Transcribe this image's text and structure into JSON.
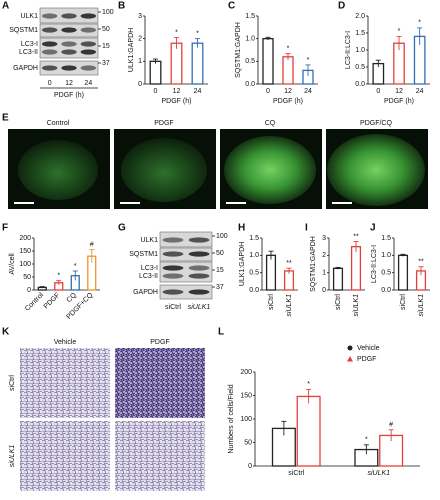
{
  "blots": [
    {
      "panel": "A",
      "rows": [
        "ULK1",
        "SQSTM1",
        "LC3-I",
        "LC3-II",
        "GAPDH"
      ],
      "markers": [
        100,
        50,
        15,
        37
      ],
      "lanes": [
        "0",
        "12",
        "24"
      ],
      "xlabel": "PDGF (h)"
    },
    {
      "panel": "G",
      "rows": [
        "ULK1",
        "SQSTM1",
        "LC3-I",
        "LC3-II",
        "GAPDH"
      ],
      "markers": [
        100,
        50,
        15,
        37
      ],
      "lanes": [
        "siCtrl",
        "siULK1"
      ]
    }
  ],
  "images": {
    "panel": "E",
    "labels": [
      "Control",
      "PDGF",
      "CQ",
      "PDGF/CQ"
    ]
  },
  "transwell": {
    "panel": "K",
    "columns": [
      "Vehicle",
      "PDGF"
    ],
    "rows": [
      "siCtrl",
      "siULK1"
    ]
  },
  "chart_data": [
    {
      "type": "bar",
      "panel": "B",
      "ylabel": "ULK1:GAPDH",
      "xlabel": "PDGF (h)",
      "categories": [
        "0",
        "12",
        "24"
      ],
      "values": [
        1.0,
        1.8,
        1.8
      ],
      "errors": [
        0.1,
        0.25,
        0.2
      ],
      "colors": [
        "#222222",
        "#e2403a",
        "#2f6eb5"
      ],
      "annotations": [
        null,
        "*",
        "*"
      ],
      "ylim": [
        0,
        3
      ],
      "yticks": [
        0,
        1,
        2,
        3
      ]
    },
    {
      "type": "bar",
      "panel": "C",
      "ylabel": "SQSTM1:GAPDH",
      "xlabel": "PDGF (h)",
      "categories": [
        "0",
        "12",
        "24"
      ],
      "values": [
        1.0,
        0.6,
        0.3
      ],
      "errors": [
        0.03,
        0.07,
        0.12
      ],
      "colors": [
        "#222222",
        "#e2403a",
        "#2f6eb5"
      ],
      "annotations": [
        null,
        "*",
        "*"
      ],
      "ylim": [
        0,
        1.5
      ],
      "yticks": [
        {
          "value": 0,
          "label": "0.0"
        },
        0.5,
        {
          "value": 1,
          "label": "1.0"
        },
        1.5
      ]
    },
    {
      "type": "bar",
      "panel": "D",
      "ylabel": "LC3-II:LC3-I",
      "xlabel": "PDGF (h)",
      "categories": [
        "0",
        "12",
        "24"
      ],
      "values": [
        0.6,
        1.2,
        1.4
      ],
      "errors": [
        0.1,
        0.2,
        0.25
      ],
      "colors": [
        "#222222",
        "#e2403a",
        "#2f6eb5"
      ],
      "annotations": [
        null,
        "*",
        "*"
      ],
      "ylim": [
        0,
        2
      ],
      "yticks": [
        {
          "value": 0,
          "label": "0.0"
        },
        0.5,
        {
          "value": 1,
          "label": "1.0"
        },
        1.5,
        {
          "value": 2,
          "label": "2.0"
        }
      ]
    },
    {
      "type": "bar",
      "panel": "F",
      "ylabel": "AV/cell",
      "categories": [
        "Control",
        "PDGF",
        "CQ",
        "PDGF+CQ"
      ],
      "values": [
        10,
        28,
        55,
        130
      ],
      "errors": [
        3,
        8,
        18,
        25
      ],
      "colors": [
        "#222222",
        "#e2403a",
        "#2f6eb5",
        "#e8962e"
      ],
      "annotations": [
        null,
        "*",
        "*",
        "#"
      ],
      "ylim": [
        0,
        200
      ],
      "yticks": [
        0,
        50,
        100,
        150,
        200
      ]
    },
    {
      "type": "bar",
      "panel": "H",
      "ylabel": "ULK1:GAPDH",
      "categories": [
        "siCtrl",
        "siULK1"
      ],
      "values": [
        1.0,
        0.55
      ],
      "errors": [
        0.12,
        0.08
      ],
      "colors": [
        "#222222",
        "#e2403a"
      ],
      "annotations": [
        null,
        "**"
      ],
      "ylim": [
        0,
        1.5
      ],
      "yticks": [
        {
          "value": 0,
          "label": "0.0"
        },
        0.5,
        {
          "value": 1,
          "label": "1.0"
        },
        1.5
      ]
    },
    {
      "type": "bar",
      "panel": "I",
      "ylabel": "SQSTM1:GAPDH",
      "categories": [
        "siCtrl",
        "siULK1"
      ],
      "values": [
        1.25,
        2.5
      ],
      "errors": [
        0.05,
        0.3
      ],
      "colors": [
        "#222222",
        "#e2403a"
      ],
      "annotations": [
        null,
        "**"
      ],
      "ylim": [
        0,
        3
      ],
      "yticks": [
        0,
        1,
        2,
        3
      ]
    },
    {
      "type": "bar",
      "panel": "J",
      "ylabel": "LC3-II:LC3-I",
      "categories": [
        "siCtrl",
        "siULK1"
      ],
      "values": [
        1.0,
        0.55
      ],
      "errors": [
        0.03,
        0.12
      ],
      "colors": [
        "#222222",
        "#e2403a"
      ],
      "annotations": [
        null,
        "**"
      ],
      "ylim": [
        0,
        1.5
      ],
      "yticks": [
        {
          "value": 0,
          "label": "0.0"
        },
        0.5,
        {
          "value": 1,
          "label": "1.0"
        },
        1.5
      ]
    },
    {
      "type": "bar",
      "panel": "L",
      "ylabel": "Numbers of cells/Field",
      "categories": [
        "siCtrl",
        "siULK1"
      ],
      "series": [
        {
          "name": "Vehicle",
          "color": "#222222",
          "values": [
            80,
            35
          ],
          "errors": [
            15,
            10
          ],
          "annotations": [
            null,
            "*"
          ]
        },
        {
          "name": "PDGF",
          "color": "#e2403a",
          "values": [
            148,
            65
          ],
          "errors": [
            15,
            12
          ],
          "annotations": [
            "*",
            "#"
          ]
        }
      ],
      "ylim": [
        0,
        200
      ],
      "yticks": [
        0,
        50,
        100,
        150,
        200
      ]
    }
  ]
}
